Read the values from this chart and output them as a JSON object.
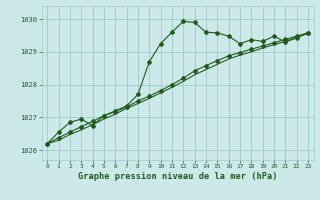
{
  "title": "Graphe pression niveau de la mer (hPa)",
  "fig_bg_color": "#cce8e8",
  "plot_bg_color": "#cce8e8",
  "grid_color": "#99cccc",
  "line_color": "#1e5c1e",
  "xlim": [
    -0.5,
    23.5
  ],
  "ylim": [
    1025.7,
    1030.4
  ],
  "yticks": [
    1026,
    1027,
    1028,
    1029,
    1030
  ],
  "xticks": [
    0,
    1,
    2,
    3,
    4,
    5,
    6,
    7,
    8,
    9,
    10,
    11,
    12,
    13,
    14,
    15,
    16,
    17,
    18,
    19,
    20,
    21,
    22,
    23
  ],
  "series1_x": [
    0,
    1,
    2,
    3,
    4,
    5,
    6,
    7,
    8,
    9,
    10,
    11,
    12,
    13,
    14,
    15,
    16,
    17,
    18,
    19,
    20,
    21,
    22,
    23
  ],
  "series1_y": [
    1026.2,
    1026.55,
    1026.85,
    1026.95,
    1026.75,
    1027.05,
    1027.2,
    1027.35,
    1027.7,
    1028.7,
    1029.25,
    1029.6,
    1029.93,
    1029.9,
    1029.6,
    1029.58,
    1029.48,
    1029.25,
    1029.37,
    1029.32,
    1029.48,
    1029.3,
    1029.42,
    1029.58
  ],
  "series2_x": [
    0,
    1,
    2,
    3,
    4,
    5,
    6,
    7,
    8,
    9,
    10,
    11,
    12,
    13,
    14,
    15,
    16,
    17,
    18,
    19,
    20,
    21,
    22,
    23
  ],
  "series2_y": [
    1026.2,
    1026.38,
    1026.55,
    1026.72,
    1026.88,
    1027.05,
    1027.18,
    1027.32,
    1027.5,
    1027.65,
    1027.82,
    1028.0,
    1028.2,
    1028.42,
    1028.58,
    1028.73,
    1028.88,
    1028.98,
    1029.08,
    1029.18,
    1029.28,
    1029.38,
    1029.48,
    1029.58
  ],
  "series3_x": [
    0,
    1,
    2,
    3,
    4,
    5,
    6,
    7,
    8,
    9,
    10,
    11,
    12,
    13,
    14,
    15,
    16,
    17,
    18,
    19,
    20,
    21,
    22,
    23
  ],
  "series3_y": [
    1026.2,
    1026.3,
    1026.48,
    1026.62,
    1026.78,
    1026.95,
    1027.1,
    1027.28,
    1027.42,
    1027.58,
    1027.75,
    1027.92,
    1028.1,
    1028.3,
    1028.46,
    1028.62,
    1028.78,
    1028.9,
    1029.0,
    1029.12,
    1029.22,
    1029.32,
    1029.45,
    1029.56
  ]
}
